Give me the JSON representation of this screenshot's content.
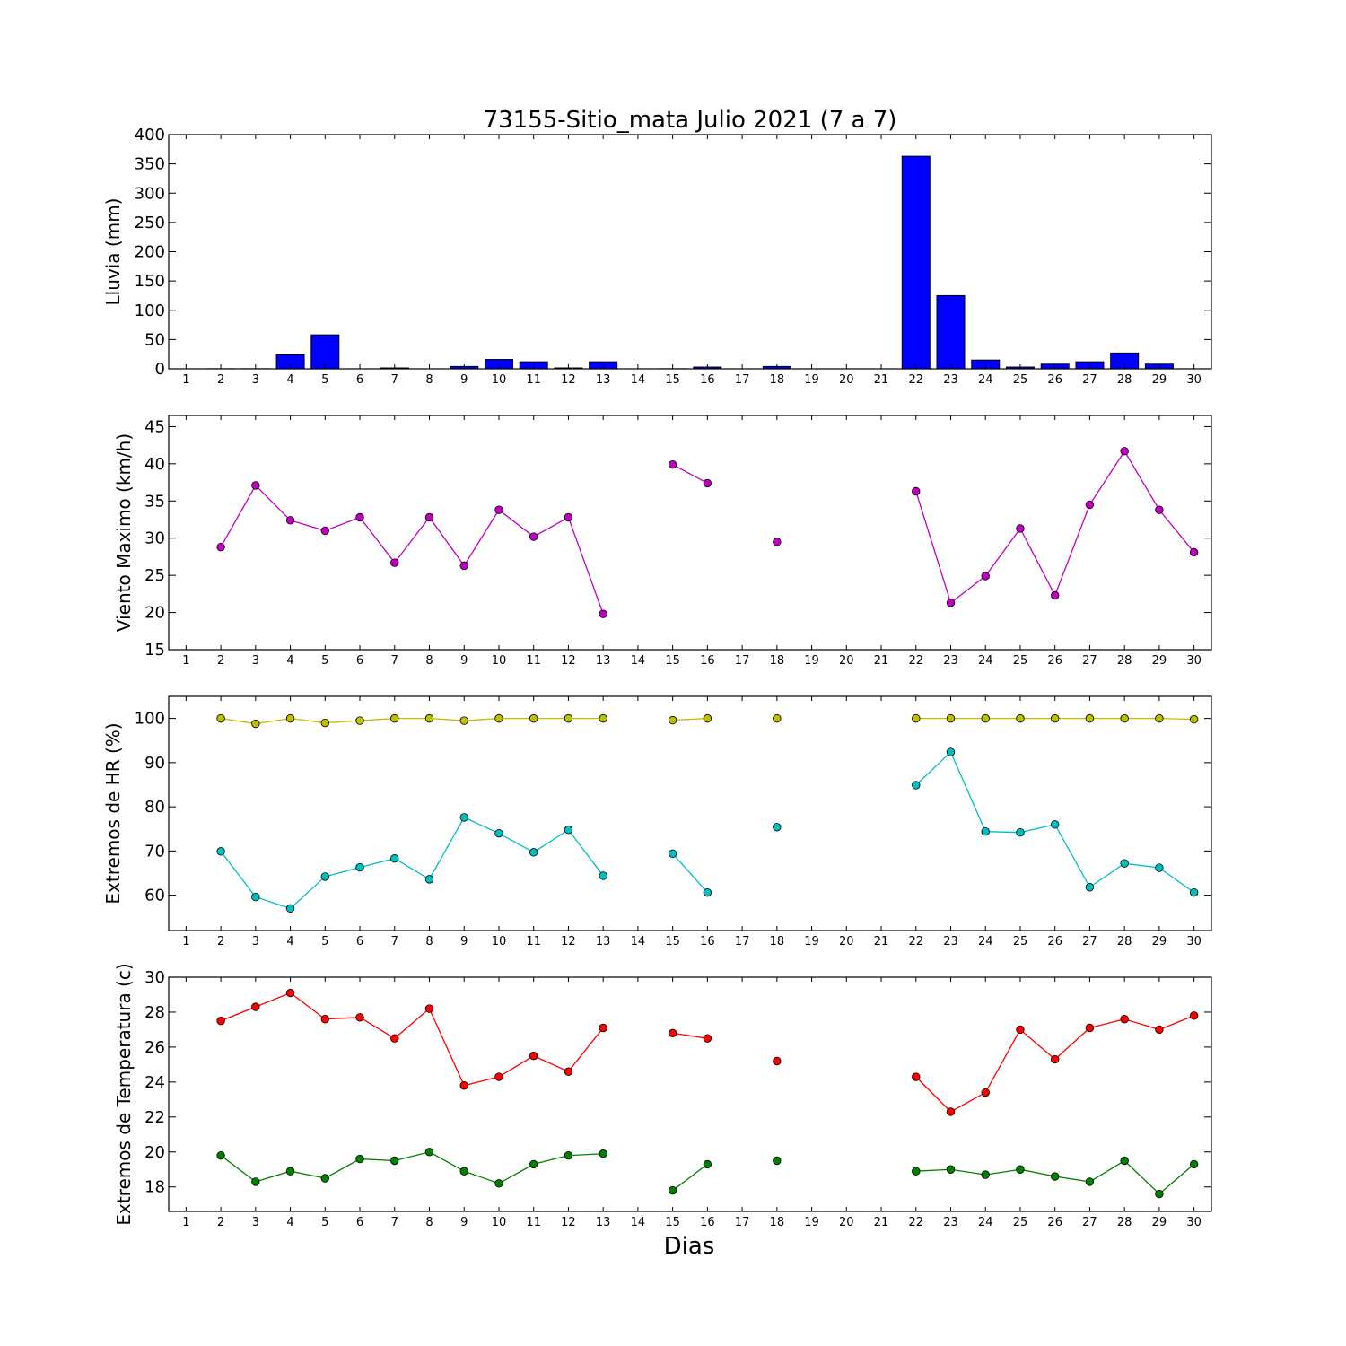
{
  "chart_data": [
    {
      "type": "bar",
      "title": "73155-Sitio_mata Julio 2021  (7 a 7)",
      "ylabel": "Lluvia (mm)",
      "xlabel": "",
      "xlim": [
        0.5,
        30.5
      ],
      "ylim": [
        0,
        400
      ],
      "yticks": [
        0,
        50,
        100,
        150,
        200,
        250,
        300,
        350,
        400
      ],
      "xticks": [
        1,
        2,
        3,
        4,
        5,
        6,
        7,
        8,
        9,
        10,
        11,
        12,
        13,
        14,
        15,
        16,
        17,
        18,
        19,
        20,
        21,
        22,
        23,
        24,
        25,
        26,
        27,
        28,
        29,
        30
      ],
      "grid": false,
      "colors": {
        "bar": "#0000ff",
        "edge": "#000000"
      },
      "series": [
        {
          "x": [
            1,
            2,
            3,
            4,
            5,
            6,
            7,
            8,
            9,
            10,
            11,
            12,
            13,
            14,
            15,
            16,
            17,
            18,
            19,
            20,
            21,
            22,
            23,
            24,
            25,
            26,
            27,
            28,
            29,
            30
          ],
          "values": [
            0,
            0.2,
            0.2,
            24,
            58,
            0,
            1.5,
            0,
            4,
            16,
            12,
            1.5,
            12,
            0,
            0.2,
            3,
            0,
            4,
            0,
            0,
            0,
            363,
            125,
            15,
            3,
            8,
            12,
            27,
            8,
            0
          ]
        }
      ]
    },
    {
      "type": "line",
      "ylabel": "Viento Maximo (km/h)",
      "xlabel": "",
      "xlim": [
        0.5,
        30.5
      ],
      "ylim": [
        15,
        46.5
      ],
      "yticks": [
        15,
        20,
        25,
        30,
        35,
        40,
        45
      ],
      "xticks": [
        1,
        2,
        3,
        4,
        5,
        6,
        7,
        8,
        9,
        10,
        11,
        12,
        13,
        14,
        15,
        16,
        17,
        18,
        19,
        20,
        21,
        22,
        23,
        24,
        25,
        26,
        27,
        28,
        29,
        30
      ],
      "grid": false,
      "series": [
        {
          "color": "#bf00bf",
          "x": [
            2,
            3,
            4,
            5,
            6,
            7,
            8,
            9,
            10,
            11,
            12,
            13,
            14,
            15,
            16,
            17,
            18,
            19,
            20,
            21,
            22,
            23,
            24,
            25,
            26,
            27,
            28,
            29,
            30
          ],
          "values": [
            28.8,
            37.1,
            32.4,
            31.0,
            32.8,
            26.7,
            32.8,
            26.3,
            33.8,
            30.2,
            32.8,
            19.8,
            null,
            39.9,
            37.4,
            null,
            29.5,
            null,
            null,
            null,
            36.3,
            21.3,
            24.9,
            31.3,
            22.3,
            34.5,
            41.7,
            33.8,
            28.1
          ]
        }
      ]
    },
    {
      "type": "line",
      "ylabel": "Extremos de HR (%)",
      "xlabel": "",
      "xlim": [
        0.5,
        30.5
      ],
      "ylim": [
        52,
        105
      ],
      "yticks": [
        60,
        70,
        80,
        90,
        100
      ],
      "xticks": [
        1,
        2,
        3,
        4,
        5,
        6,
        7,
        8,
        9,
        10,
        11,
        12,
        13,
        14,
        15,
        16,
        17,
        18,
        19,
        20,
        21,
        22,
        23,
        24,
        25,
        26,
        27,
        28,
        29,
        30
      ],
      "grid": false,
      "series": [
        {
          "color": "#bfbf00",
          "x": [
            2,
            3,
            4,
            5,
            6,
            7,
            8,
            9,
            10,
            11,
            12,
            13,
            14,
            15,
            16,
            17,
            18,
            19,
            20,
            21,
            22,
            23,
            24,
            25,
            26,
            27,
            28,
            29,
            30
          ],
          "values": [
            100,
            98.8,
            100,
            99,
            99.5,
            100,
            100,
            99.5,
            100,
            100,
            100,
            100,
            null,
            99.6,
            100,
            null,
            100,
            null,
            null,
            null,
            100,
            100,
            100,
            100,
            100,
            100,
            100,
            100,
            99.8
          ]
        },
        {
          "color": "#00bfbf",
          "x": [
            2,
            3,
            4,
            5,
            6,
            7,
            8,
            9,
            10,
            11,
            12,
            13,
            14,
            15,
            16,
            17,
            18,
            19,
            20,
            21,
            22,
            23,
            24,
            25,
            26,
            27,
            28,
            29,
            30
          ],
          "values": [
            69.9,
            59.6,
            57.0,
            64.2,
            66.3,
            68.3,
            63.6,
            77.6,
            74.0,
            69.7,
            74.8,
            64.4,
            null,
            69.4,
            60.6,
            null,
            75.4,
            null,
            null,
            null,
            84.9,
            92.4,
            74.4,
            74.2,
            76.0,
            61.8,
            67.2,
            66.2,
            60.6
          ]
        }
      ]
    },
    {
      "type": "line",
      "ylabel": "Extremos de Temperatura (c)",
      "xlabel": "Dias",
      "xlim": [
        0.5,
        30.5
      ],
      "ylim": [
        16.6,
        30
      ],
      "yticks": [
        18,
        20,
        22,
        24,
        26,
        28,
        30
      ],
      "xticks": [
        1,
        2,
        3,
        4,
        5,
        6,
        7,
        8,
        9,
        10,
        11,
        12,
        13,
        14,
        15,
        16,
        17,
        18,
        19,
        20,
        21,
        22,
        23,
        24,
        25,
        26,
        27,
        28,
        29,
        30
      ],
      "grid": false,
      "series": [
        {
          "color": "#ff0000",
          "x": [
            2,
            3,
            4,
            5,
            6,
            7,
            8,
            9,
            10,
            11,
            12,
            13,
            14,
            15,
            16,
            17,
            18,
            19,
            20,
            21,
            22,
            23,
            24,
            25,
            26,
            27,
            28,
            29,
            30
          ],
          "values": [
            27.5,
            28.3,
            29.1,
            27.6,
            27.7,
            26.5,
            28.2,
            23.8,
            24.3,
            25.5,
            24.6,
            27.1,
            null,
            26.8,
            26.5,
            null,
            25.2,
            null,
            null,
            null,
            24.3,
            22.3,
            23.4,
            27.0,
            25.3,
            27.1,
            27.6,
            27.0,
            27.8
          ]
        },
        {
          "color": "#008000",
          "x": [
            2,
            3,
            4,
            5,
            6,
            7,
            8,
            9,
            10,
            11,
            12,
            13,
            14,
            15,
            16,
            17,
            18,
            19,
            20,
            21,
            22,
            23,
            24,
            25,
            26,
            27,
            28,
            29,
            30
          ],
          "values": [
            19.8,
            18.3,
            18.9,
            18.5,
            19.6,
            19.5,
            20.0,
            18.9,
            18.2,
            19.3,
            19.8,
            19.9,
            null,
            17.8,
            19.3,
            null,
            19.5,
            null,
            null,
            null,
            18.9,
            19.0,
            18.7,
            19.0,
            18.6,
            18.3,
            19.5,
            17.6,
            19.3
          ]
        }
      ]
    }
  ]
}
